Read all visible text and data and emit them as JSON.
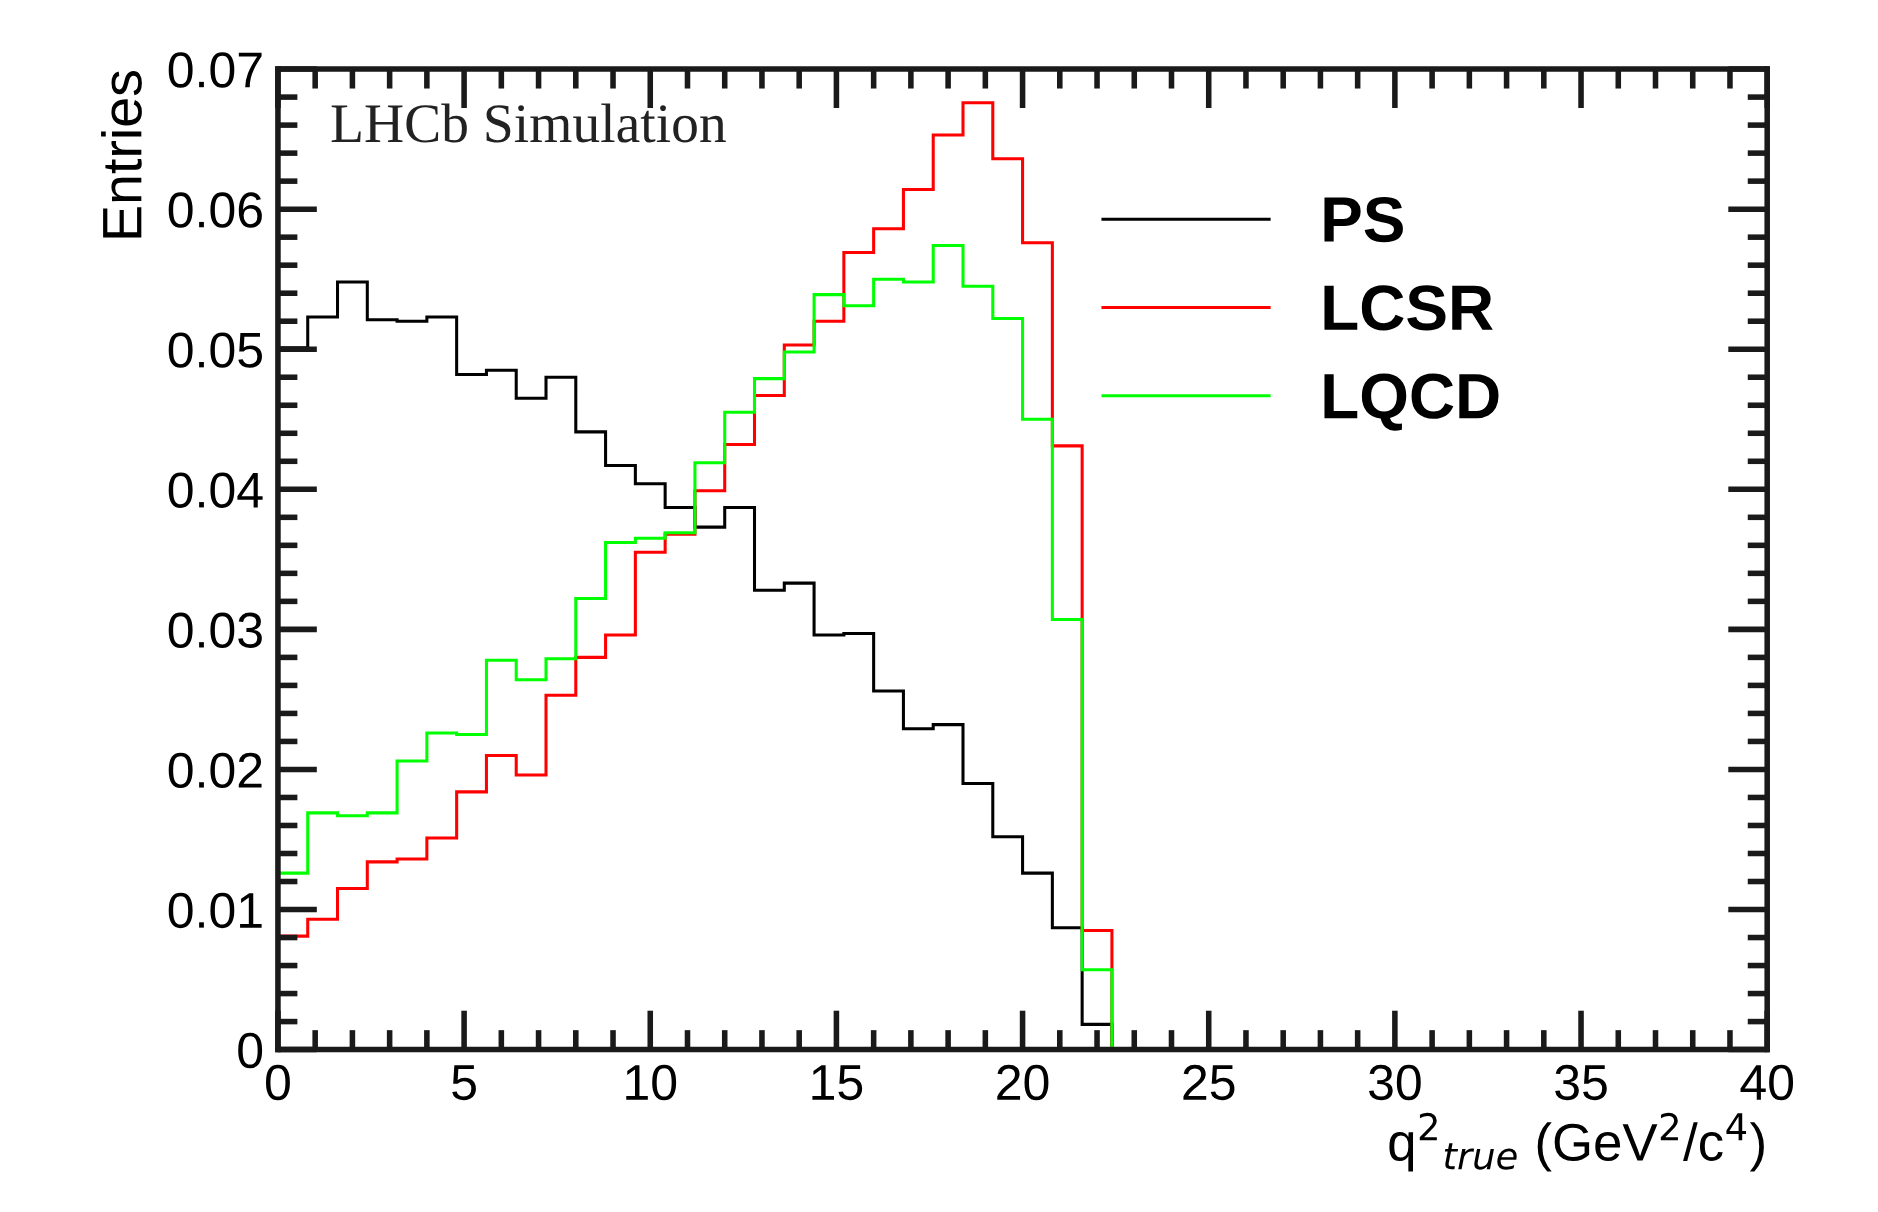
{
  "chart_data": {
    "type": "histogram",
    "xlabel": "q$^{2}$$_{true}$ (GeV$^{2}$/c$^{4}$)",
    "ylabel": "Entries",
    "annotations": [
      "LHCb Simulation"
    ],
    "bins": [
      0,
      0.8,
      1.6,
      2.4,
      3.2,
      4.0,
      4.8,
      5.6,
      6.4,
      7.2,
      8.0,
      8.8,
      9.6,
      10.4,
      11.2,
      12.0,
      12.8,
      13.6,
      14.4,
      15.2,
      16.0,
      16.8,
      17.6,
      18.4,
      19.2,
      20.0,
      20.8,
      21.6,
      22.4,
      23.2,
      24.0,
      24.8,
      25.6,
      26.4,
      27.2,
      28.0,
      28.8,
      29.6,
      30.4,
      31.2,
      32.0,
      32.8,
      33.6,
      34.4,
      35.2,
      36.0,
      36.8,
      37.6,
      38.4,
      39.2,
      40.0
    ],
    "series": [
      {
        "name": "PS",
        "color": "#000000",
        "values": [
          0.0501,
          0.0523,
          0.0548,
          0.0521,
          0.052,
          0.0523,
          0.0482,
          0.0485,
          0.0465,
          0.048,
          0.0441,
          0.0417,
          0.0404,
          0.0387,
          0.0373,
          0.0387,
          0.0328,
          0.0333,
          0.0296,
          0.0297,
          0.0256,
          0.0229,
          0.0232,
          0.019,
          0.0152,
          0.0126,
          0.0087,
          0.0018,
          0,
          0,
          0,
          0,
          0,
          0,
          0,
          0,
          0,
          0,
          0,
          0,
          0,
          0,
          0,
          0,
          0,
          0,
          0,
          0,
          0,
          0
        ]
      },
      {
        "name": "LCSR",
        "color": "#ff0000",
        "values": [
          0.0081,
          0.0093,
          0.0115,
          0.0134,
          0.0136,
          0.0151,
          0.0184,
          0.021,
          0.0196,
          0.0253,
          0.028,
          0.0296,
          0.0355,
          0.0368,
          0.0399,
          0.0432,
          0.0467,
          0.0503,
          0.052,
          0.0569,
          0.0586,
          0.0614,
          0.0653,
          0.0676,
          0.0636,
          0.0576,
          0.0431,
          0.0085,
          0,
          0,
          0,
          0,
          0,
          0,
          0,
          0,
          0,
          0,
          0,
          0,
          0,
          0,
          0,
          0,
          0,
          0,
          0,
          0,
          0,
          0
        ]
      },
      {
        "name": "LQCD",
        "color": "#00ff00",
        "values": [
          0.0126,
          0.0169,
          0.0167,
          0.0169,
          0.0206,
          0.0226,
          0.0225,
          0.0278,
          0.0264,
          0.0279,
          0.0322,
          0.0362,
          0.0365,
          0.0369,
          0.0419,
          0.0455,
          0.0479,
          0.0498,
          0.0539,
          0.0531,
          0.055,
          0.0548,
          0.0574,
          0.0545,
          0.0522,
          0.045,
          0.0307,
          0.0057,
          0,
          0,
          0,
          0,
          0,
          0,
          0,
          0,
          0,
          0,
          0,
          0,
          0,
          0,
          0,
          0,
          0,
          0,
          0,
          0,
          0,
          0
        ]
      }
    ],
    "xlim": [
      0,
      40
    ],
    "xticks": [
      0,
      5,
      10,
      15,
      20,
      25,
      30,
      35,
      40
    ],
    "ylim": [
      0,
      0.07
    ],
    "yticks": [
      0,
      0.01,
      0.02,
      0.03,
      0.04,
      0.05,
      0.06,
      0.07
    ],
    "legend": "top right",
    "grid": false
  }
}
